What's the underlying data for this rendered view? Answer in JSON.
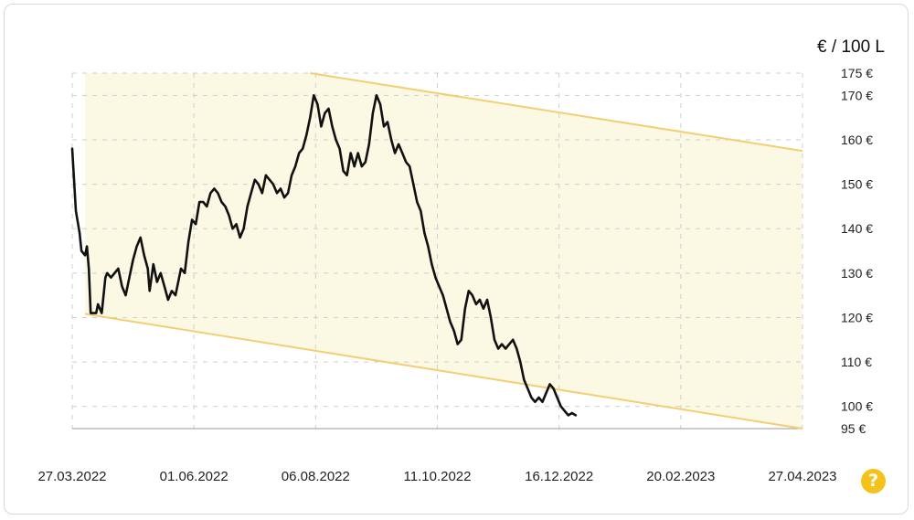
{
  "chart_data": {
    "type": "line",
    "unit_label": "€ / 100 L",
    "x_start": "27.03.2022",
    "x_end": "27.04.2023",
    "x_ticks": [
      "27.03.2022",
      "01.06.2022",
      "06.08.2022",
      "11.10.2022",
      "16.12.2022",
      "20.02.2023",
      "27.04.2023"
    ],
    "ylim": [
      95,
      175
    ],
    "y_ticks": [
      {
        "value": 175,
        "label": "175 €"
      },
      {
        "value": 170,
        "label": "170 €"
      },
      {
        "value": 160,
        "label": "160 €"
      },
      {
        "value": 150,
        "label": "150 €"
      },
      {
        "value": 140,
        "label": "140 €"
      },
      {
        "value": 130,
        "label": "130 €"
      },
      {
        "value": 120,
        "label": "120 €"
      },
      {
        "value": 110,
        "label": "110 €"
      },
      {
        "value": 100,
        "label": "100 €"
      },
      {
        "value": 95,
        "label": "95 €"
      }
    ],
    "grid": true,
    "colors": {
      "line": "#111111",
      "channel_fill": "#fbf8e4",
      "channel_edge": "#f3cf73",
      "grid": "#cfcfcf"
    },
    "trend_channel": {
      "upper": [
        {
          "x": "03.08.2022",
          "y": 175
        },
        {
          "x": "27.04.2023",
          "y": 157.5
        }
      ],
      "lower": [
        {
          "x": "03.04.2022",
          "y": 120.8
        },
        {
          "x": "27.04.2023",
          "y": 95
        }
      ]
    },
    "series": [
      {
        "points": [
          [
            "27.03.2022",
            158
          ],
          [
            "29.03.2022",
            144
          ],
          [
            "31.03.2022",
            139
          ],
          [
            "01.04.2022",
            135
          ],
          [
            "03.04.2022",
            134
          ],
          [
            "04.04.2022",
            136
          ],
          [
            "05.04.2022",
            131
          ],
          [
            "06.04.2022",
            121
          ],
          [
            "09.04.2022",
            121
          ],
          [
            "10.04.2022",
            123
          ],
          [
            "12.04.2022",
            121
          ],
          [
            "14.04.2022",
            129
          ],
          [
            "15.04.2022",
            130
          ],
          [
            "17.04.2022",
            129
          ],
          [
            "19.04.2022",
            130
          ],
          [
            "21.04.2022",
            131
          ],
          [
            "23.04.2022",
            127
          ],
          [
            "25.04.2022",
            125
          ],
          [
            "27.04.2022",
            129
          ],
          [
            "29.04.2022",
            133
          ],
          [
            "01.05.2022",
            136
          ],
          [
            "03.05.2022",
            138
          ],
          [
            "05.05.2022",
            134
          ],
          [
            "07.05.2022",
            131
          ],
          [
            "08.05.2022",
            126
          ],
          [
            "10.05.2022",
            132
          ],
          [
            "12.05.2022",
            128
          ],
          [
            "14.05.2022",
            130
          ],
          [
            "16.05.2022",
            127
          ],
          [
            "18.05.2022",
            124
          ],
          [
            "20.05.2022",
            126
          ],
          [
            "22.05.2022",
            125
          ],
          [
            "25.05.2022",
            131
          ],
          [
            "27.05.2022",
            130
          ],
          [
            "29.05.2022",
            137
          ],
          [
            "31.05.2022",
            142
          ],
          [
            "02.06.2022",
            141
          ],
          [
            "04.06.2022",
            146
          ],
          [
            "06.06.2022",
            146
          ],
          [
            "08.06.2022",
            145
          ],
          [
            "10.06.2022",
            148
          ],
          [
            "12.06.2022",
            149
          ],
          [
            "14.06.2022",
            148
          ],
          [
            "16.06.2022",
            146
          ],
          [
            "18.06.2022",
            145
          ],
          [
            "20.06.2022",
            143
          ],
          [
            "22.06.2022",
            140
          ],
          [
            "24.06.2022",
            141
          ],
          [
            "26.06.2022",
            138
          ],
          [
            "28.06.2022",
            140
          ],
          [
            "30.06.2022",
            145
          ],
          [
            "02.07.2022",
            148
          ],
          [
            "04.07.2022",
            151
          ],
          [
            "06.07.2022",
            150
          ],
          [
            "08.07.2022",
            148
          ],
          [
            "10.07.2022",
            152
          ],
          [
            "12.07.2022",
            151
          ],
          [
            "14.07.2022",
            150
          ],
          [
            "16.07.2022",
            148
          ],
          [
            "18.07.2022",
            149
          ],
          [
            "20.07.2022",
            147
          ],
          [
            "22.07.2022",
            148
          ],
          [
            "24.07.2022",
            152
          ],
          [
            "26.07.2022",
            154
          ],
          [
            "28.07.2022",
            157
          ],
          [
            "30.07.2022",
            158
          ],
          [
            "01.08.2022",
            161
          ],
          [
            "03.08.2022",
            165
          ],
          [
            "05.08.2022",
            170
          ],
          [
            "07.08.2022",
            168
          ],
          [
            "09.08.2022",
            163
          ],
          [
            "11.08.2022",
            166
          ],
          [
            "13.08.2022",
            167
          ],
          [
            "15.08.2022",
            163
          ],
          [
            "17.08.2022",
            160
          ],
          [
            "19.08.2022",
            158
          ],
          [
            "21.08.2022",
            153
          ],
          [
            "23.08.2022",
            152
          ],
          [
            "25.08.2022",
            157
          ],
          [
            "27.08.2022",
            154
          ],
          [
            "29.08.2022",
            157
          ],
          [
            "31.08.2022",
            154
          ],
          [
            "02.09.2022",
            155
          ],
          [
            "04.09.2022",
            159
          ],
          [
            "06.09.2022",
            166
          ],
          [
            "08.09.2022",
            170
          ],
          [
            "10.09.2022",
            168
          ],
          [
            "12.09.2022",
            163
          ],
          [
            "14.09.2022",
            164
          ],
          [
            "16.09.2022",
            160
          ],
          [
            "18.09.2022",
            157
          ],
          [
            "20.09.2022",
            159
          ],
          [
            "22.09.2022",
            157
          ],
          [
            "24.09.2022",
            155
          ],
          [
            "26.09.2022",
            154
          ],
          [
            "28.09.2022",
            150
          ],
          [
            "30.09.2022",
            146
          ],
          [
            "02.10.2022",
            144
          ],
          [
            "04.10.2022",
            139
          ],
          [
            "06.10.2022",
            136
          ],
          [
            "08.10.2022",
            132
          ],
          [
            "10.10.2022",
            129
          ],
          [
            "12.10.2022",
            127
          ],
          [
            "14.10.2022",
            125
          ],
          [
            "16.10.2022",
            122
          ],
          [
            "18.10.2022",
            119
          ],
          [
            "20.10.2022",
            117
          ],
          [
            "22.10.2022",
            114
          ],
          [
            "24.10.2022",
            115
          ],
          [
            "26.10.2022",
            122
          ],
          [
            "28.10.2022",
            126
          ],
          [
            "30.10.2022",
            125
          ],
          [
            "01.11.2022",
            123
          ],
          [
            "03.11.2022",
            124
          ],
          [
            "05.11.2022",
            122
          ],
          [
            "07.11.2022",
            124
          ],
          [
            "09.11.2022",
            120
          ],
          [
            "11.11.2022",
            115
          ],
          [
            "13.11.2022",
            113
          ],
          [
            "15.11.2022",
            114
          ],
          [
            "17.11.2022",
            113
          ],
          [
            "19.11.2022",
            114
          ],
          [
            "21.11.2022",
            115
          ],
          [
            "23.11.2022",
            113
          ],
          [
            "25.11.2022",
            110
          ],
          [
            "27.11.2022",
            106
          ],
          [
            "29.11.2022",
            104
          ],
          [
            "01.12.2022",
            102
          ],
          [
            "03.12.2022",
            101
          ],
          [
            "05.12.2022",
            102
          ],
          [
            "07.12.2022",
            101
          ],
          [
            "09.12.2022",
            103
          ],
          [
            "11.12.2022",
            105
          ],
          [
            "13.12.2022",
            104
          ],
          [
            "15.12.2022",
            102
          ],
          [
            "17.12.2022",
            100
          ],
          [
            "19.12.2022",
            99
          ],
          [
            "21.12.2022",
            98
          ],
          [
            "23.12.2022",
            98.5
          ],
          [
            "25.12.2022",
            98
          ]
        ]
      }
    ]
  },
  "help_icon": {
    "glyph": "?",
    "color": "#f3c21b"
  }
}
